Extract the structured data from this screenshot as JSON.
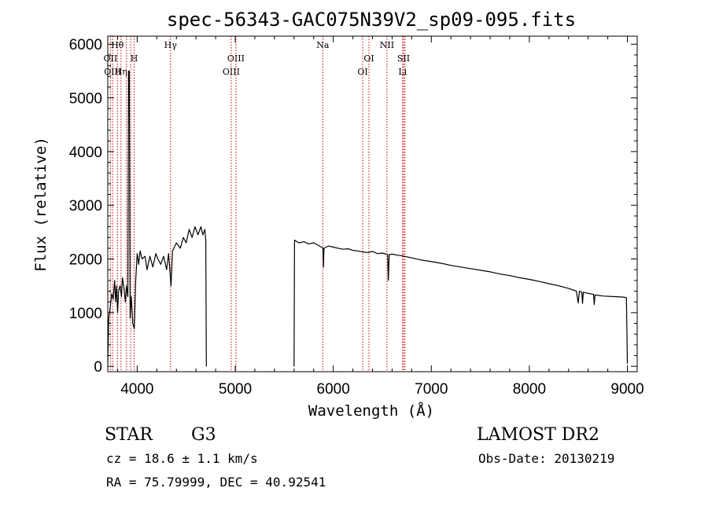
{
  "chart_data": {
    "type": "line",
    "title": "spec-56343-GAC075N39V2_sp09-095.fits",
    "xlabel": "Wavelength (Å)",
    "ylabel": "Flux (relative)",
    "xlim": [
      3700,
      9100
    ],
    "ylim": [
      -100,
      6150
    ],
    "xticks": [
      4000,
      5000,
      6000,
      7000,
      8000,
      9000
    ],
    "yticks": [
      0,
      1000,
      2000,
      3000,
      4000,
      5000,
      6000
    ],
    "grid": false,
    "series": [
      {
        "segments": [
          [
            [
              3700,
              50
            ],
            [
              3710,
              900
            ],
            [
              3725,
              1100
            ],
            [
              3740,
              1350
            ],
            [
              3755,
              1250
            ],
            [
              3770,
              1600
            ],
            [
              3780,
              1200
            ],
            [
              3790,
              1500
            ],
            [
              3800,
              1000
            ],
            [
              3810,
              1400
            ],
            [
              3825,
              1500
            ],
            [
              3840,
              1300
            ],
            [
              3850,
              1650
            ],
            [
              3865,
              1450
            ],
            [
              3880,
              1200
            ],
            [
              3890,
              1500
            ],
            [
              3905,
              1300
            ],
            [
              3912,
              5500
            ],
            [
              3920,
              5500
            ],
            [
              3928,
              900
            ],
            [
              3940,
              1300
            ],
            [
              3955,
              800
            ],
            [
              3970,
              700
            ],
            [
              3985,
              1600
            ],
            [
              4000,
              2100
            ],
            [
              4015,
              1900
            ],
            [
              4030,
              2150
            ],
            [
              4050,
              2000
            ],
            [
              4080,
              2050
            ],
            [
              4100,
              1800
            ],
            [
              4130,
              2050
            ],
            [
              4160,
              1850
            ],
            [
              4190,
              2100
            ],
            [
              4210,
              2000
            ],
            [
              4240,
              1900
            ],
            [
              4270,
              2050
            ],
            [
              4300,
              1800
            ],
            [
              4320,
              2100
            ],
            [
              4345,
              1500
            ],
            [
              4360,
              2150
            ],
            [
              4400,
              2300
            ],
            [
              4440,
              2200
            ],
            [
              4470,
              2400
            ],
            [
              4500,
              2300
            ],
            [
              4530,
              2550
            ],
            [
              4560,
              2400
            ],
            [
              4590,
              2600
            ],
            [
              4620,
              2450
            ],
            [
              4650,
              2600
            ],
            [
              4670,
              2450
            ],
            [
              4690,
              2550
            ],
            [
              4700,
              2350
            ],
            [
              4705,
              0
            ]
          ],
          [
            [
              5600,
              0
            ],
            [
              5605,
              2350
            ],
            [
              5650,
              2300
            ],
            [
              5700,
              2320
            ],
            [
              5750,
              2280
            ],
            [
              5800,
              2300
            ],
            [
              5850,
              2250
            ],
            [
              5895,
              2200
            ],
            [
              5900,
              1850
            ],
            [
              5905,
              2200
            ],
            [
              5950,
              2240
            ],
            [
              6000,
              2220
            ],
            [
              6050,
              2200
            ],
            [
              6100,
              2180
            ],
            [
              6150,
              2190
            ],
            [
              6200,
              2160
            ],
            [
              6250,
              2150
            ],
            [
              6300,
              2130
            ],
            [
              6350,
              2120
            ],
            [
              6400,
              2140
            ],
            [
              6450,
              2100
            ],
            [
              6500,
              2110
            ],
            [
              6555,
              2080
            ],
            [
              6562,
              1600
            ],
            [
              6570,
              2080
            ],
            [
              6600,
              2090
            ],
            [
              6650,
              2070
            ],
            [
              6700,
              2060
            ],
            [
              6800,
              2020
            ],
            [
              6900,
              1980
            ],
            [
              7000,
              1950
            ],
            [
              7100,
              1920
            ],
            [
              7200,
              1880
            ],
            [
              7300,
              1850
            ],
            [
              7400,
              1820
            ],
            [
              7500,
              1790
            ],
            [
              7600,
              1760
            ],
            [
              7700,
              1720
            ],
            [
              7800,
              1690
            ],
            [
              7900,
              1650
            ],
            [
              8000,
              1620
            ],
            [
              8100,
              1580
            ],
            [
              8200,
              1540
            ],
            [
              8300,
              1500
            ],
            [
              8400,
              1450
            ],
            [
              8480,
              1400
            ],
            [
              8498,
              1180
            ],
            [
              8510,
              1400
            ],
            [
              8535,
              1380
            ],
            [
              8542,
              1170
            ],
            [
              8550,
              1380
            ],
            [
              8600,
              1360
            ],
            [
              8655,
              1340
            ],
            [
              8662,
              1150
            ],
            [
              8670,
              1330
            ],
            [
              8750,
              1310
            ],
            [
              8850,
              1300
            ],
            [
              8950,
              1290
            ],
            [
              8990,
              1280
            ],
            [
              9000,
              50
            ]
          ]
        ]
      }
    ],
    "line_markers": [
      {
        "wavelength": 3727,
        "label": "OII",
        "row": 2
      },
      {
        "wavelength": 3750,
        "label": "OIII",
        "row": 3
      },
      {
        "wavelength": 3798,
        "label": "Hθ",
        "row": 1
      },
      {
        "wavelength": 3835,
        "label": "Hη",
        "row": 3
      },
      {
        "wavelength": 3890,
        "label": "",
        "row": 0
      },
      {
        "wavelength": 3934,
        "label": "",
        "row": 0
      },
      {
        "wavelength": 3969,
        "label": "H",
        "row": 2
      },
      {
        "wavelength": 4340,
        "label": "Hγ",
        "row": 1
      },
      {
        "wavelength": 4959,
        "label": "OIII",
        "row": 3
      },
      {
        "wavelength": 5007,
        "label": "OIII",
        "row": 2
      },
      {
        "wavelength": 5893,
        "label": "Na",
        "row": 1
      },
      {
        "wavelength": 6300,
        "label": "OI",
        "row": 3
      },
      {
        "wavelength": 6364,
        "label": "OI",
        "row": 2
      },
      {
        "wavelength": 6548,
        "label": "NII",
        "row": 1
      },
      {
        "wavelength": 6707,
        "label": "Li",
        "row": 3
      },
      {
        "wavelength": 6717,
        "label": "SII",
        "row": 2
      },
      {
        "wavelength": 6731,
        "label": "",
        "row": 0
      }
    ],
    "marker_color": "#cc0000",
    "line_color": "#000000"
  },
  "info": {
    "object_class": "STAR",
    "subclass": "G3",
    "survey": "LAMOST DR2",
    "redshift": "cz = 18.6 ± 1.1 km/s",
    "obs_date": "Obs-Date: 20130219",
    "coords": "RA =  75.79999, DEC =  40.92541"
  }
}
